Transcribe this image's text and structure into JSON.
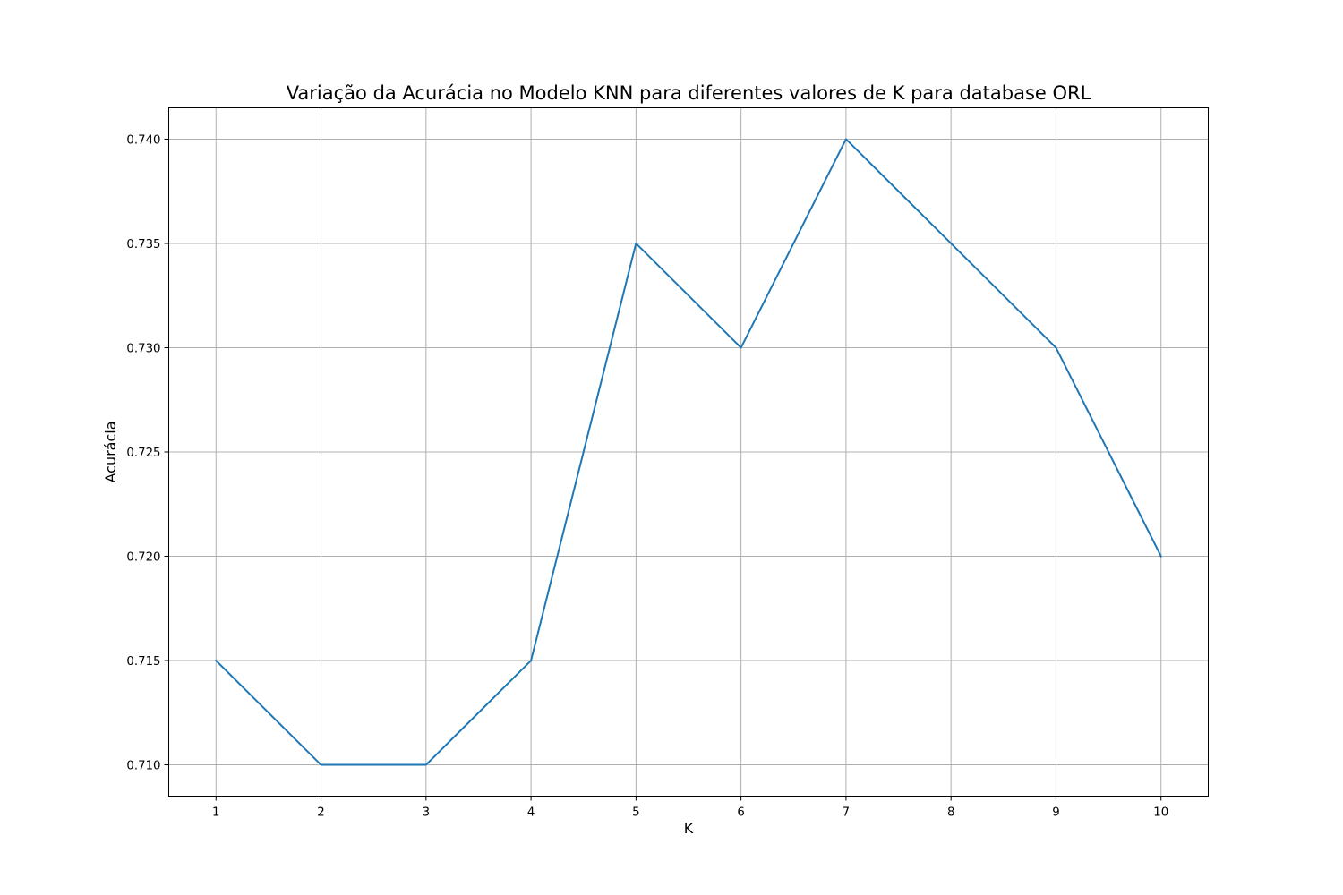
{
  "chart_data": {
    "type": "line",
    "title": "Variação da Acurácia no Modelo KNN para diferentes valores de K para database ORL",
    "xlabel": "K",
    "ylabel": "Acurácia",
    "x": [
      1,
      2,
      3,
      4,
      5,
      6,
      7,
      8,
      9,
      10
    ],
    "series": [
      {
        "values": [
          0.715,
          0.71,
          0.71,
          0.715,
          0.735,
          0.73,
          0.74,
          0.735,
          0.73,
          0.72
        ],
        "color": "#1f77b4"
      }
    ],
    "xticks": [
      "1",
      "2",
      "3",
      "4",
      "5",
      "6",
      "7",
      "8",
      "9",
      "10"
    ],
    "yticks": [
      "0.710",
      "0.715",
      "0.720",
      "0.725",
      "0.730",
      "0.735",
      "0.740"
    ],
    "xlim": [
      0.55,
      10.45
    ],
    "ylim": [
      0.7085,
      0.7415
    ],
    "grid": true,
    "colors": {
      "grid": "#b0b0b0",
      "frame": "#000000"
    }
  }
}
